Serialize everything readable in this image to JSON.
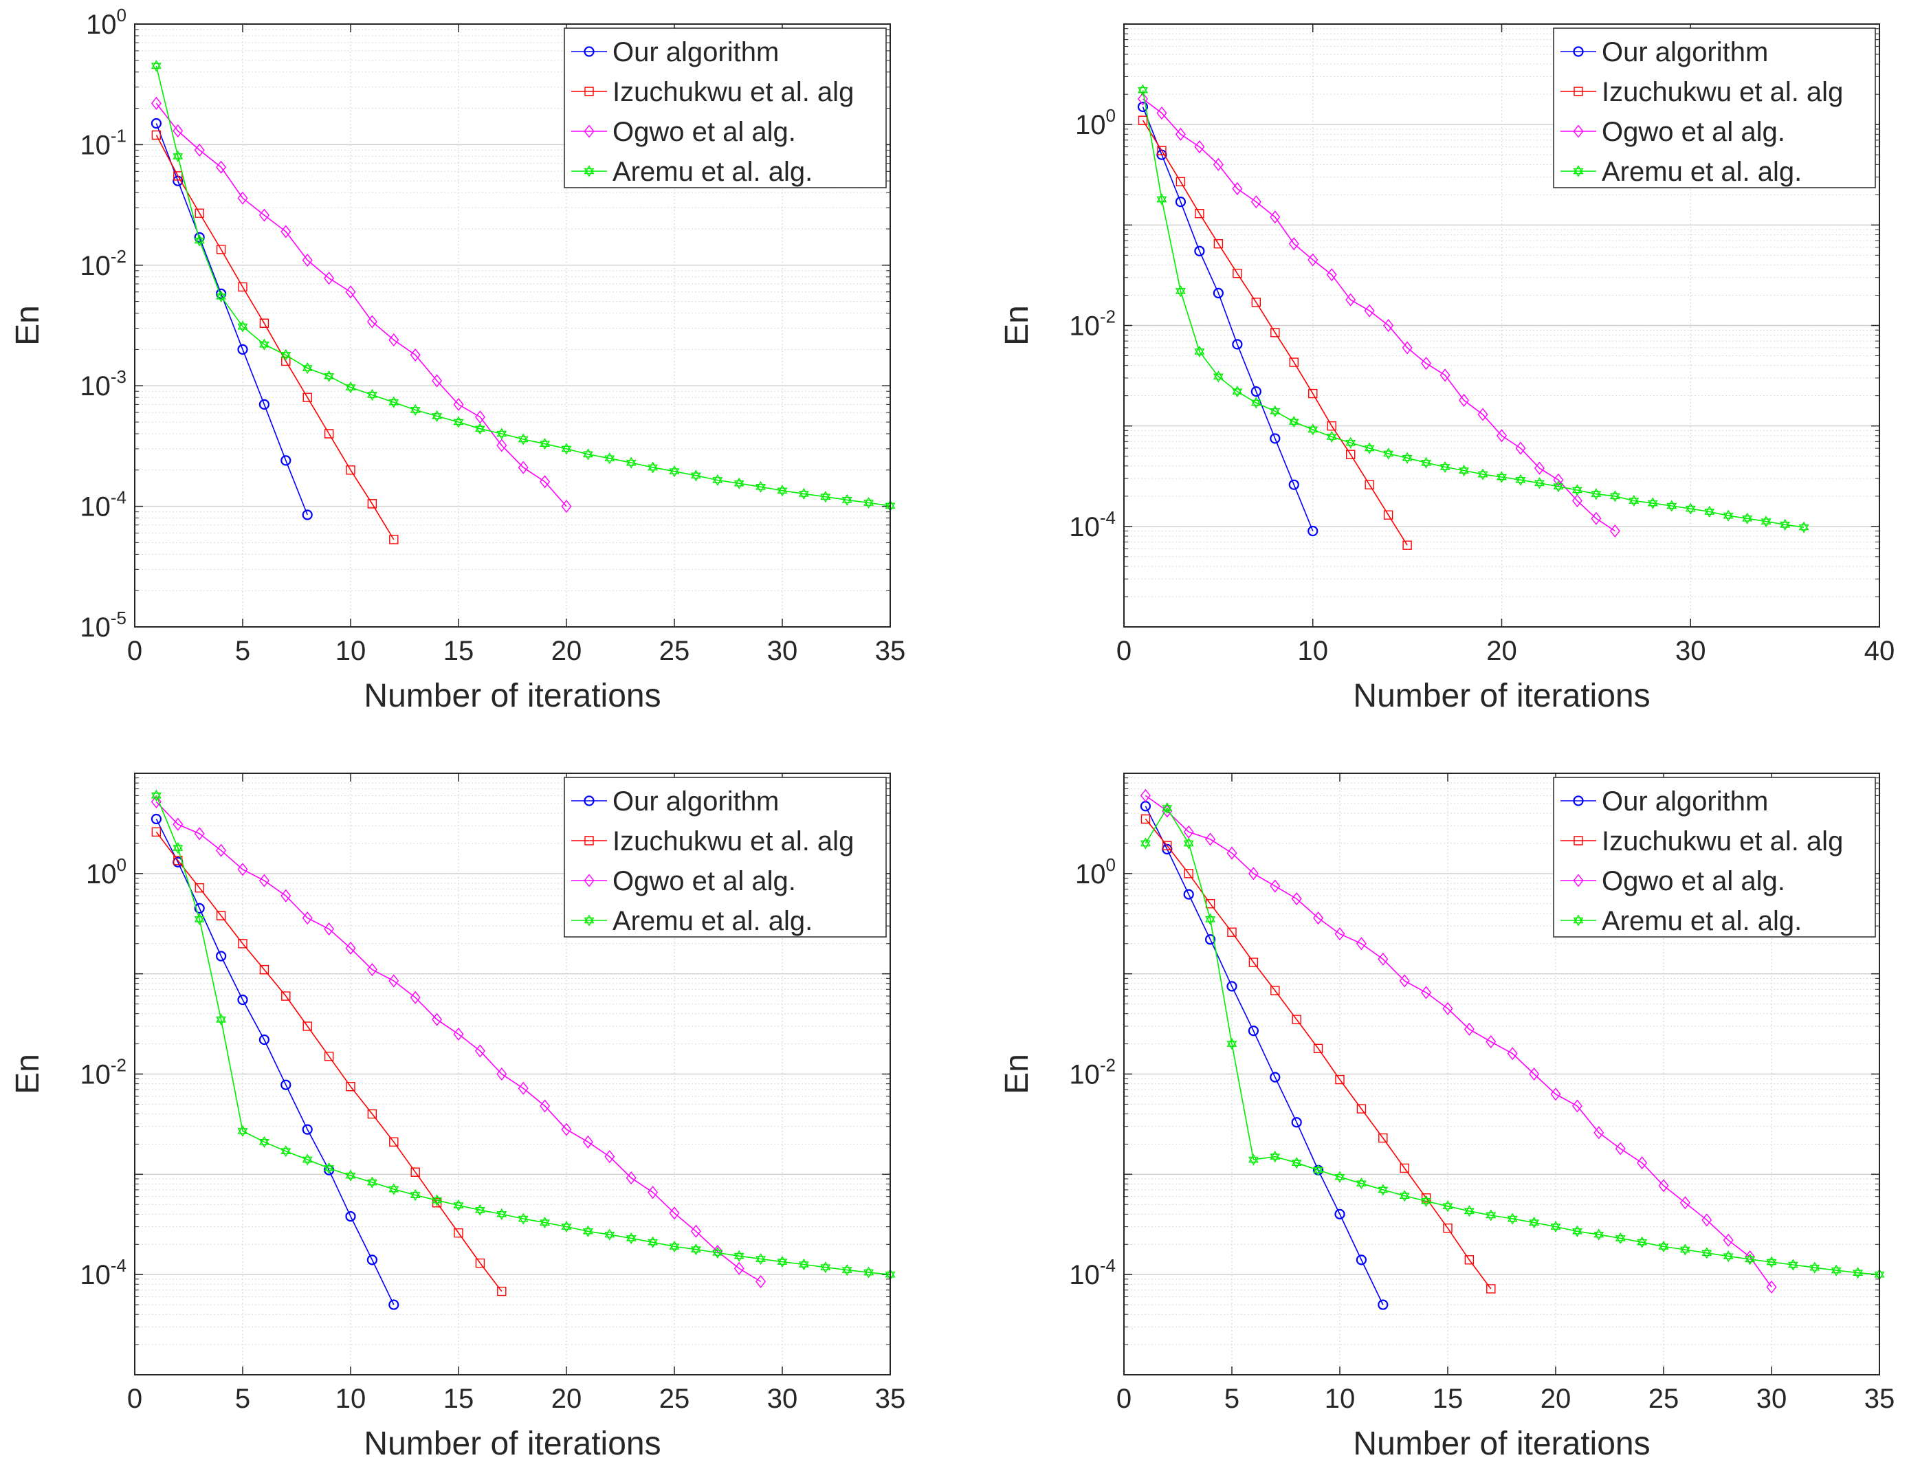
{
  "figure": {
    "colors": {
      "blue": "#0000ff",
      "red": "#ff0000",
      "magenta": "#ff00ff",
      "green": "#00ee00"
    }
  },
  "chart_data": [
    {
      "type": "line",
      "panel": "top-left",
      "xlabel": "Number of iterations",
      "ylabel": "En",
      "yscale": "log",
      "xlim": [
        0,
        35
      ],
      "ylim": [
        1e-05,
        1
      ],
      "xticks": [
        0,
        5,
        10,
        15,
        20,
        25,
        30,
        35
      ],
      "xtick_labels": [
        "0",
        "5",
        "10",
        "15",
        "20",
        "25",
        "30",
        "35"
      ],
      "yticks": [
        {
          "exp": 0,
          "label_base": "10",
          "label_exp": "0"
        },
        {
          "exp": -1,
          "label_base": "10",
          "label_exp": "-1"
        },
        {
          "exp": -2,
          "label_base": "10",
          "label_exp": "-2"
        },
        {
          "exp": -3,
          "label_base": "10",
          "label_exp": "-3"
        },
        {
          "exp": -4,
          "label_base": "10",
          "label_exp": "-4"
        },
        {
          "exp": -5,
          "label_base": "10",
          "label_exp": "-5"
        }
      ],
      "legend_position": "top-right",
      "series": [
        {
          "name": "Our algorithm",
          "color": "#0000ff",
          "marker": "circle",
          "x": [
            1,
            2,
            3,
            4,
            5,
            6,
            7,
            8
          ],
          "y": [
            0.15,
            0.05,
            0.017,
            0.0058,
            0.002,
            0.0007,
            0.00024,
            8.5e-05
          ]
        },
        {
          "name": "Izuchukwu et al. alg",
          "color": "#ff0000",
          "marker": "square",
          "x": [
            1,
            2,
            3,
            4,
            5,
            6,
            7,
            8,
            9,
            10,
            11,
            12
          ],
          "y": [
            0.12,
            0.055,
            0.027,
            0.0135,
            0.0066,
            0.0033,
            0.0016,
            0.0008,
            0.0004,
            0.0002,
            0.000105,
            5.3e-05
          ]
        },
        {
          "name": "Ogwo et al alg.",
          "color": "#ff00ff",
          "marker": "diamond",
          "x": [
            1,
            2,
            3,
            4,
            5,
            6,
            7,
            8,
            9,
            10,
            11,
            12,
            13,
            14,
            15,
            16,
            17,
            18,
            19,
            20
          ],
          "y": [
            0.22,
            0.13,
            0.09,
            0.065,
            0.036,
            0.026,
            0.019,
            0.011,
            0.0078,
            0.006,
            0.0034,
            0.0024,
            0.0018,
            0.0011,
            0.0007,
            0.00055,
            0.00032,
            0.00021,
            0.00016,
            0.0001
          ]
        },
        {
          "name": "Aremu et al. alg.",
          "color": "#00ee00",
          "marker": "hexagram",
          "x": [
            1,
            2,
            3,
            4,
            5,
            6,
            7,
            8,
            9,
            10,
            11,
            12,
            13,
            14,
            15,
            16,
            17,
            18,
            19,
            20,
            21,
            22,
            23,
            24,
            25,
            26,
            27,
            28,
            29,
            30,
            31,
            32,
            33,
            34,
            35
          ],
          "y": [
            0.45,
            0.08,
            0.016,
            0.0055,
            0.0031,
            0.0022,
            0.0018,
            0.0014,
            0.0012,
            0.00097,
            0.00084,
            0.00073,
            0.00063,
            0.00056,
            0.0005,
            0.00044,
            0.0004,
            0.00036,
            0.00033,
            0.0003,
            0.00027,
            0.00025,
            0.00023,
            0.00021,
            0.000195,
            0.00018,
            0.000165,
            0.000155,
            0.000145,
            0.000135,
            0.000127,
            0.00012,
            0.000113,
            0.000107,
            0.000101
          ]
        }
      ]
    },
    {
      "type": "line",
      "panel": "top-right",
      "xlabel": "Number of iterations",
      "ylabel": "En",
      "yscale": "log",
      "xlim": [
        0,
        40
      ],
      "ylim": [
        1e-05,
        10
      ],
      "xticks": [
        0,
        10,
        20,
        30,
        40
      ],
      "xtick_labels": [
        "0",
        "10",
        "20",
        "30",
        "40"
      ],
      "yticks": [
        {
          "exp": 0,
          "label_base": "10",
          "label_exp": "0"
        },
        {
          "exp": -2,
          "label_base": "10",
          "label_exp": "-2"
        },
        {
          "exp": -4,
          "label_base": "10",
          "label_exp": "-4"
        }
      ],
      "legend_position": "top-right",
      "series": [
        {
          "name": "Our algorithm",
          "color": "#0000ff",
          "marker": "circle",
          "x": [
            1,
            2,
            3,
            4,
            5,
            6,
            7,
            8,
            9,
            10
          ],
          "y": [
            1.5,
            0.5,
            0.17,
            0.055,
            0.021,
            0.0065,
            0.0022,
            0.00075,
            0.00026,
            9e-05
          ]
        },
        {
          "name": "Izuchukwu et al. alg",
          "color": "#ff0000",
          "marker": "square",
          "x": [
            1,
            2,
            3,
            4,
            5,
            6,
            7,
            8,
            9,
            10,
            11,
            12,
            13,
            14,
            15
          ],
          "y": [
            1.1,
            0.55,
            0.27,
            0.13,
            0.065,
            0.033,
            0.017,
            0.0085,
            0.0043,
            0.0021,
            0.001,
            0.00052,
            0.00026,
            0.00013,
            6.5e-05
          ]
        },
        {
          "name": "Ogwo et al alg.",
          "color": "#ff00ff",
          "marker": "diamond",
          "x": [
            1,
            2,
            3,
            4,
            5,
            6,
            7,
            8,
            9,
            10,
            11,
            12,
            13,
            14,
            15,
            16,
            17,
            18,
            19,
            20,
            21,
            22,
            23,
            24,
            25,
            26
          ],
          "y": [
            1.8,
            1.3,
            0.8,
            0.6,
            0.4,
            0.23,
            0.17,
            0.12,
            0.065,
            0.045,
            0.032,
            0.018,
            0.014,
            0.01,
            0.006,
            0.0042,
            0.0032,
            0.0018,
            0.0013,
            0.0008,
            0.0006,
            0.00038,
            0.00029,
            0.00018,
            0.00012,
            9e-05
          ]
        },
        {
          "name": "Aremu et al. alg.",
          "color": "#00ee00",
          "marker": "hexagram",
          "x": [
            1,
            2,
            3,
            4,
            5,
            6,
            7,
            8,
            9,
            10,
            11,
            12,
            13,
            14,
            15,
            16,
            17,
            18,
            19,
            20,
            21,
            22,
            23,
            24,
            25,
            26,
            27,
            28,
            29,
            30,
            31,
            32,
            33,
            34,
            35,
            36
          ],
          "y": [
            2.2,
            0.18,
            0.022,
            0.0055,
            0.0031,
            0.0022,
            0.0017,
            0.0014,
            0.0011,
            0.00092,
            0.00078,
            0.00068,
            0.0006,
            0.00053,
            0.00048,
            0.00043,
            0.00039,
            0.00036,
            0.00033,
            0.00031,
            0.00029,
            0.00027,
            0.00025,
            0.00023,
            0.00021,
            0.0002,
            0.00018,
            0.00017,
            0.00016,
            0.00015,
            0.00014,
            0.000128,
            0.00012,
            0.000112,
            0.000104,
            9.8e-05
          ]
        }
      ]
    },
    {
      "type": "line",
      "panel": "bottom-left",
      "xlabel": "Number of iterations",
      "ylabel": "En",
      "yscale": "log",
      "xlim": [
        0,
        35
      ],
      "ylim": [
        1e-05,
        10
      ],
      "xticks": [
        0,
        5,
        10,
        15,
        20,
        25,
        30,
        35
      ],
      "xtick_labels": [
        "0",
        "5",
        "10",
        "15",
        "20",
        "25",
        "30",
        "35"
      ],
      "yticks": [
        {
          "exp": 0,
          "label_base": "10",
          "label_exp": "0"
        },
        {
          "exp": -2,
          "label_base": "10",
          "label_exp": "-2"
        },
        {
          "exp": -4,
          "label_base": "10",
          "label_exp": "-4"
        }
      ],
      "legend_position": "top-right",
      "series": [
        {
          "name": "Our algorithm",
          "color": "#0000ff",
          "marker": "circle",
          "x": [
            1,
            2,
            3,
            4,
            5,
            6,
            7,
            8,
            9,
            10,
            11,
            12
          ],
          "y": [
            3.5,
            1.3,
            0.45,
            0.15,
            0.055,
            0.022,
            0.0078,
            0.0028,
            0.0011,
            0.00038,
            0.00014,
            5e-05
          ]
        },
        {
          "name": "Izuchukwu et al. alg",
          "color": "#ff0000",
          "marker": "square",
          "x": [
            1,
            2,
            3,
            4,
            5,
            6,
            7,
            8,
            9,
            10,
            11,
            12,
            13,
            14,
            15,
            16,
            17
          ],
          "y": [
            2.6,
            1.35,
            0.72,
            0.38,
            0.2,
            0.11,
            0.06,
            0.03,
            0.015,
            0.0075,
            0.004,
            0.0021,
            0.00105,
            0.00052,
            0.00026,
            0.00013,
            6.8e-05
          ]
        },
        {
          "name": "Ogwo et al alg.",
          "color": "#ff00ff",
          "marker": "diamond",
          "x": [
            1,
            2,
            3,
            4,
            5,
            6,
            7,
            8,
            9,
            10,
            11,
            12,
            13,
            14,
            15,
            16,
            17,
            18,
            19,
            20,
            21,
            22,
            23,
            24,
            25,
            26,
            27,
            28,
            29
          ],
          "y": [
            5.2,
            3.1,
            2.5,
            1.7,
            1.1,
            0.85,
            0.6,
            0.36,
            0.28,
            0.18,
            0.11,
            0.085,
            0.058,
            0.035,
            0.025,
            0.017,
            0.01,
            0.0072,
            0.0048,
            0.0028,
            0.0021,
            0.0015,
            0.00092,
            0.00066,
            0.00041,
            0.00027,
            0.00017,
            0.000115,
            8.5e-05
          ]
        },
        {
          "name": "Aremu et al. alg.",
          "color": "#00ee00",
          "marker": "hexagram",
          "x": [
            1,
            2,
            3,
            4,
            5,
            6,
            7,
            8,
            9,
            10,
            11,
            12,
            13,
            14,
            15,
            16,
            17,
            18,
            19,
            20,
            21,
            22,
            23,
            24,
            25,
            26,
            27,
            28,
            29,
            30,
            31,
            32,
            33,
            34,
            35
          ],
          "y": [
            6.0,
            1.8,
            0.35,
            0.035,
            0.0027,
            0.0021,
            0.0017,
            0.0014,
            0.00115,
            0.00097,
            0.00083,
            0.00071,
            0.00062,
            0.00055,
            0.00049,
            0.00044,
            0.0004,
            0.00036,
            0.00033,
            0.0003,
            0.00027,
            0.00025,
            0.00023,
            0.00021,
            0.00019,
            0.000178,
            0.000165,
            0.000153,
            0.000143,
            0.000134,
            0.000126,
            0.000118,
            0.000111,
            0.000105,
            0.0001
          ]
        }
      ]
    },
    {
      "type": "line",
      "panel": "bottom-right",
      "xlabel": "Number of iterations",
      "ylabel": "En",
      "yscale": "log",
      "xlim": [
        0,
        35
      ],
      "ylim": [
        1e-05,
        10
      ],
      "xticks": [
        0,
        5,
        10,
        15,
        20,
        25,
        30,
        35
      ],
      "xtick_labels": [
        "0",
        "5",
        "10",
        "15",
        "20",
        "25",
        "30",
        "35"
      ],
      "yticks": [
        {
          "exp": 0,
          "label_base": "10",
          "label_exp": "0"
        },
        {
          "exp": -2,
          "label_base": "10",
          "label_exp": "-2"
        },
        {
          "exp": -4,
          "label_base": "10",
          "label_exp": "-4"
        }
      ],
      "legend_position": "top-right",
      "series": [
        {
          "name": "Our algorithm",
          "color": "#0000ff",
          "marker": "circle",
          "x": [
            1,
            2,
            3,
            4,
            5,
            6,
            7,
            8,
            9,
            10,
            11,
            12
          ],
          "y": [
            4.7,
            1.75,
            0.62,
            0.22,
            0.075,
            0.027,
            0.0093,
            0.0033,
            0.0011,
            0.0004,
            0.00014,
            5e-05
          ]
        },
        {
          "name": "Izuchukwu et al. alg",
          "color": "#ff0000",
          "marker": "square",
          "x": [
            1,
            2,
            3,
            4,
            5,
            6,
            7,
            8,
            9,
            10,
            11,
            12,
            13,
            14,
            15,
            16,
            17
          ],
          "y": [
            3.5,
            1.9,
            1.0,
            0.5,
            0.26,
            0.13,
            0.068,
            0.035,
            0.018,
            0.0088,
            0.0045,
            0.0023,
            0.00115,
            0.00058,
            0.00029,
            0.00014,
            7.2e-05
          ]
        },
        {
          "name": "Ogwo et al alg.",
          "color": "#ff00ff",
          "marker": "diamond",
          "x": [
            1,
            2,
            3,
            4,
            5,
            6,
            7,
            8,
            9,
            10,
            11,
            12,
            13,
            14,
            15,
            16,
            17,
            18,
            19,
            20,
            21,
            22,
            23,
            24,
            25,
            26,
            27,
            28,
            29,
            30
          ],
          "y": [
            6.0,
            4.2,
            2.6,
            2.2,
            1.6,
            1.0,
            0.75,
            0.56,
            0.36,
            0.25,
            0.2,
            0.14,
            0.085,
            0.065,
            0.045,
            0.028,
            0.021,
            0.016,
            0.01,
            0.0063,
            0.0048,
            0.0026,
            0.0018,
            0.0013,
            0.00077,
            0.00052,
            0.00035,
            0.00022,
            0.00015,
            7.5e-05
          ]
        },
        {
          "name": "Aremu et al. alg.",
          "color": "#00ee00",
          "marker": "hexagram",
          "x": [
            1,
            2,
            3,
            4,
            5,
            6,
            7,
            8,
            9,
            10,
            11,
            12,
            13,
            14,
            15,
            16,
            17,
            18,
            19,
            20,
            21,
            22,
            23,
            24,
            25,
            26,
            27,
            28,
            29,
            30,
            31,
            32,
            33,
            34,
            35
          ],
          "y": [
            2.0,
            4.5,
            2.0,
            0.35,
            0.02,
            0.0014,
            0.0015,
            0.0013,
            0.0011,
            0.00094,
            0.00081,
            0.0007,
            0.00061,
            0.00054,
            0.00048,
            0.00043,
            0.00039,
            0.00036,
            0.00033,
            0.0003,
            0.00027,
            0.00025,
            0.00023,
            0.00021,
            0.00019,
            0.000177,
            0.000164,
            0.000152,
            0.000142,
            0.000133,
            0.000125,
            0.000117,
            0.00011,
            0.000104,
            0.0001
          ]
        }
      ]
    }
  ]
}
